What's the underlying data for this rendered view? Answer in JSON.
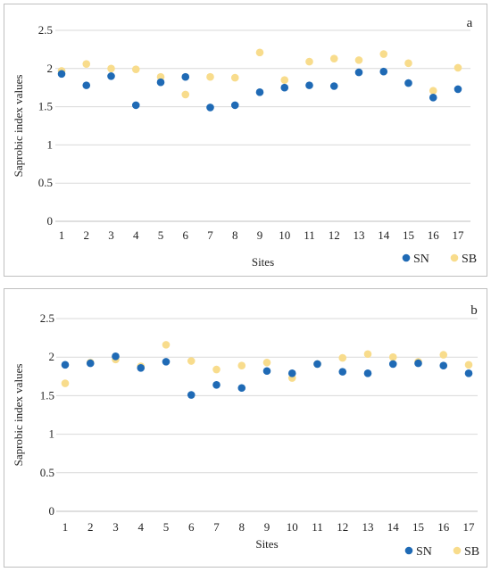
{
  "chart_data": [
    {
      "type": "scatter",
      "panel_label": "a",
      "xlabel": "Sites",
      "ylabel": "Saprobic index values",
      "x": [
        1,
        2,
        3,
        4,
        5,
        6,
        7,
        8,
        9,
        10,
        11,
        12,
        13,
        14,
        15,
        16,
        17
      ],
      "y_ticks": [
        "0",
        "0.5",
        "1",
        "1.5",
        "2",
        "2.5"
      ],
      "ylim": [
        0,
        2.5
      ],
      "grid": "horizontal",
      "legend_position": "bottom-right",
      "series": [
        {
          "name": "SN",
          "color": "#1f6ab5",
          "values": [
            1.93,
            1.78,
            1.9,
            1.52,
            1.82,
            1.89,
            1.49,
            1.52,
            1.69,
            1.75,
            1.78,
            1.77,
            1.95,
            1.96,
            1.81,
            1.62,
            1.73
          ]
        },
        {
          "name": "SB",
          "color": "#f8dc8c",
          "values": [
            1.97,
            2.06,
            2.0,
            1.99,
            1.89,
            1.66,
            1.89,
            1.88,
            2.21,
            1.85,
            2.09,
            2.13,
            2.11,
            2.19,
            2.07,
            1.71,
            2.01
          ]
        }
      ]
    },
    {
      "type": "scatter",
      "panel_label": "b",
      "xlabel": "Sites",
      "ylabel": "Saprobic index values",
      "x": [
        1,
        2,
        3,
        4,
        5,
        6,
        7,
        8,
        9,
        10,
        11,
        12,
        13,
        14,
        15,
        16,
        17
      ],
      "y_ticks": [
        "0",
        "0.5",
        "1",
        "1.5",
        "2",
        "2.5"
      ],
      "ylim": [
        0,
        2.5
      ],
      "grid": "horizontal",
      "legend_position": "bottom-right",
      "series": [
        {
          "name": "SN",
          "color": "#1f6ab5",
          "values": [
            1.9,
            1.92,
            2.01,
            1.86,
            1.94,
            1.51,
            1.64,
            1.6,
            1.82,
            1.79,
            1.91,
            1.81,
            1.79,
            1.91,
            1.92,
            1.89,
            1.79
          ]
        },
        {
          "name": "SB",
          "color": "#f8dc8c",
          "values": [
            1.66,
            1.93,
            1.97,
            1.88,
            2.16,
            1.95,
            1.84,
            1.89,
            1.93,
            1.73,
            1.91,
            1.99,
            2.04,
            2.0,
            1.94,
            2.03,
            1.9
          ]
        }
      ]
    }
  ]
}
